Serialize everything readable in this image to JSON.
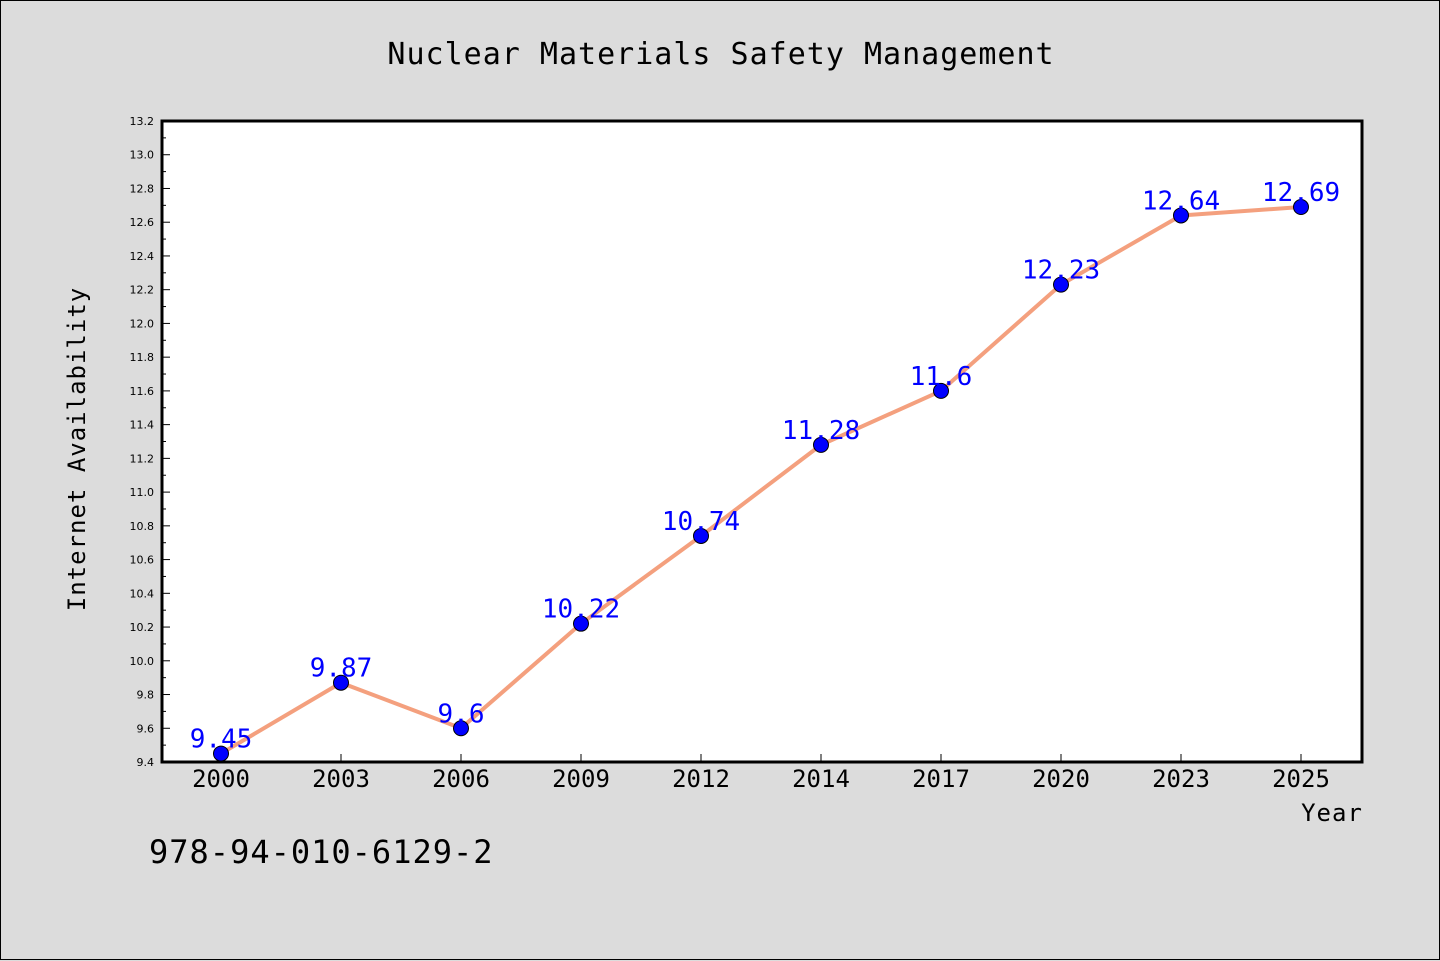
{
  "chart_data": {
    "type": "line",
    "title": "Nuclear Materials Safety Management",
    "xlabel": "Year",
    "ylabel": "Internet Availability",
    "categories": [
      "2000",
      "2003",
      "2006",
      "2009",
      "2012",
      "2014",
      "2017",
      "2020",
      "2023",
      "2025"
    ],
    "series": [
      {
        "values": [
          9.45,
          9.87,
          9.6,
          10.22,
          10.74,
          11.28,
          11.6,
          12.23,
          12.64,
          12.69
        ],
        "labels": [
          "9.45",
          "9.87",
          "9.6",
          "10.22",
          "10.74",
          "11.28",
          "11.6",
          "12.23",
          "12.64",
          "12.69"
        ],
        "line_color": "#f4a07e",
        "marker_color": "#0000ff"
      }
    ],
    "ylim": [
      9.4,
      13.2
    ],
    "yticks": [
      "9.4",
      "9.6",
      "9.8",
      "10.0",
      "10.2",
      "10.4",
      "10.6",
      "10.8",
      "11.0",
      "11.2",
      "11.4",
      "11.6",
      "11.8",
      "12.0",
      "12.2",
      "12.4",
      "12.6",
      "12.8",
      "13.0",
      "13.2"
    ],
    "grid": false,
    "legend": "none"
  },
  "footer": {
    "isbn": "978-94-010-6129-2"
  },
  "colors": {
    "background": "#dcdcdc",
    "plot_background": "#ffffff",
    "line": "#f4a07e",
    "marker": "#0000ff",
    "data_label": "#0000ff"
  }
}
